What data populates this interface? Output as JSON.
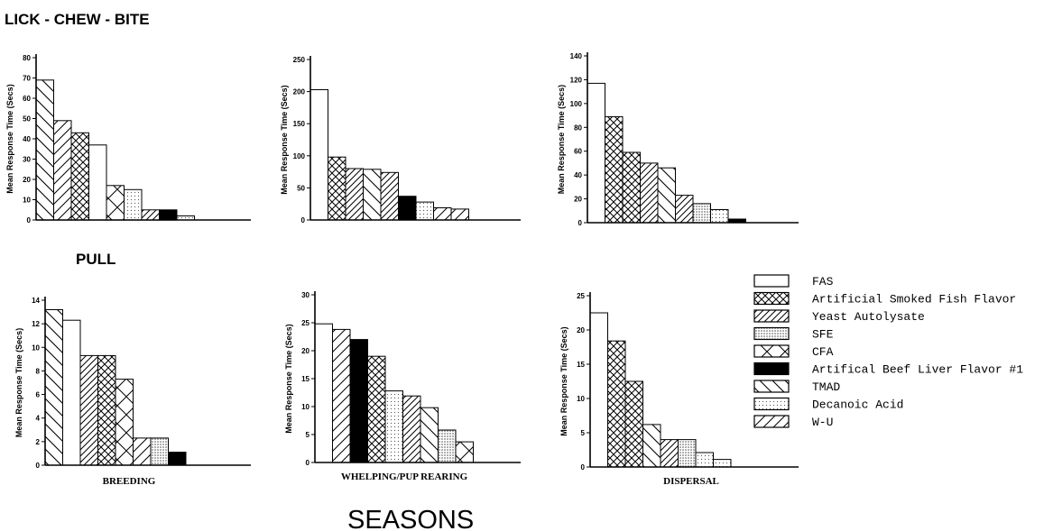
{
  "figure": {
    "section_top": "LICK - CHEW - BITE",
    "section_bottom": "PULL",
    "footer": "SEASONS"
  },
  "legend": [
    {
      "label": "FAS",
      "pattern": "white"
    },
    {
      "label": "Artificial Smoked Fish Flavor",
      "pattern": "crosshatch"
    },
    {
      "label": "Yeast Autolysate",
      "pattern": "diag-dense"
    },
    {
      "label": "SFE",
      "pattern": "dots-dense"
    },
    {
      "label": "CFA",
      "pattern": "xcross"
    },
    {
      "label": "Artifical Beef Liver Flavor #1",
      "pattern": "black"
    },
    {
      "label": "TMAD",
      "pattern": "backslash"
    },
    {
      "label": "Decanoic Acid",
      "pattern": "dots-sparse"
    },
    {
      "label": "W-U",
      "pattern": "diag-sparse"
    }
  ],
  "chart_data": [
    {
      "type": "bar",
      "panel": "top-left",
      "ylabel": "Mean Response Time (Secs)",
      "xlabel": "",
      "ylim": [
        0,
        80
      ],
      "yticks": [
        0,
        10,
        20,
        30,
        40,
        50,
        60,
        70,
        80
      ],
      "bars": [
        {
          "treatment": "TMAD",
          "value": 69
        },
        {
          "treatment": "W-U",
          "value": 49
        },
        {
          "treatment": "Artificial Smoked Fish Flavor",
          "value": 43
        },
        {
          "treatment": "FAS",
          "value": 37
        },
        {
          "treatment": "CFA",
          "value": 17
        },
        {
          "treatment": "Decanoic Acid",
          "value": 15
        },
        {
          "treatment": "Yeast Autolysate",
          "value": 5
        },
        {
          "treatment": "Artifical Beef Liver Flavor #1",
          "value": 5
        },
        {
          "treatment": "Decanoic Acid",
          "value": 2
        }
      ]
    },
    {
      "type": "bar",
      "panel": "top-middle",
      "ylabel": "Mean Response Time (Secs)",
      "xlabel": "",
      "ylim": [
        0,
        250
      ],
      "yticks": [
        0,
        50,
        100,
        150,
        200,
        250
      ],
      "bars": [
        {
          "treatment": "FAS",
          "value": 203
        },
        {
          "treatment": "Artificial Smoked Fish Flavor",
          "value": 98
        },
        {
          "treatment": "Yeast Autolysate",
          "value": 80
        },
        {
          "treatment": "TMAD",
          "value": 79
        },
        {
          "treatment": "Yeast Autolysate",
          "value": 74
        },
        {
          "treatment": "Artifical Beef Liver Flavor #1",
          "value": 37
        },
        {
          "treatment": "Decanoic Acid",
          "value": 28
        },
        {
          "treatment": "W-U",
          "value": 19
        },
        {
          "treatment": "W-U",
          "value": 17
        }
      ]
    },
    {
      "type": "bar",
      "panel": "top-right",
      "ylabel": "Mean Response Time (Secs)",
      "xlabel": "",
      "ylim": [
        0,
        140
      ],
      "yticks": [
        0,
        20,
        40,
        60,
        80,
        100,
        120,
        140
      ],
      "bars": [
        {
          "treatment": "FAS",
          "value": 117
        },
        {
          "treatment": "Artificial Smoked Fish Flavor",
          "value": 89
        },
        {
          "treatment": "Artificial Smoked Fish Flavor",
          "value": 59
        },
        {
          "treatment": "Yeast Autolysate",
          "value": 50
        },
        {
          "treatment": "TMAD",
          "value": 46
        },
        {
          "treatment": "Yeast Autolysate",
          "value": 23
        },
        {
          "treatment": "SFE",
          "value": 16
        },
        {
          "treatment": "Decanoic Acid",
          "value": 11
        },
        {
          "treatment": "Artifical Beef Liver Flavor #1",
          "value": 3
        }
      ]
    },
    {
      "type": "bar",
      "panel": "bottom-left",
      "ylabel": "Mean Response Time (Secs)",
      "xlabel": "BREEDING",
      "ylim": [
        0,
        14
      ],
      "yticks": [
        0,
        2,
        4,
        6,
        8,
        10,
        12,
        14
      ],
      "bars": [
        {
          "treatment": "TMAD",
          "value": 13.2
        },
        {
          "treatment": "FAS",
          "value": 12.3
        },
        {
          "treatment": "Yeast Autolysate",
          "value": 9.3
        },
        {
          "treatment": "Artificial Smoked Fish Flavor",
          "value": 9.3
        },
        {
          "treatment": "CFA",
          "value": 7.3
        },
        {
          "treatment": "W-U",
          "value": 2.3
        },
        {
          "treatment": "SFE",
          "value": 2.3
        },
        {
          "treatment": "Artifical Beef Liver Flavor #1",
          "value": 1.1
        }
      ]
    },
    {
      "type": "bar",
      "panel": "bottom-middle",
      "ylabel": "Mean Response Time (Secs)",
      "xlabel": "WHELPING/PUP REARING",
      "ylim": [
        0,
        30
      ],
      "yticks": [
        0,
        5,
        10,
        15,
        20,
        25,
        30
      ],
      "bars": [
        {
          "treatment": "FAS",
          "value": 24.8
        },
        {
          "treatment": "W-U",
          "value": 23.8
        },
        {
          "treatment": "Artifical Beef Liver Flavor #1",
          "value": 22
        },
        {
          "treatment": "Artificial Smoked Fish Flavor",
          "value": 19
        },
        {
          "treatment": "Decanoic Acid",
          "value": 12.8
        },
        {
          "treatment": "Yeast Autolysate",
          "value": 11.9
        },
        {
          "treatment": "TMAD",
          "value": 9.8
        },
        {
          "treatment": "SFE",
          "value": 5.8
        },
        {
          "treatment": "CFA",
          "value": 3.7
        }
      ]
    },
    {
      "type": "bar",
      "panel": "bottom-right",
      "ylabel": "Mean Response Time (Secs)",
      "xlabel": "DISPERSAL",
      "ylim": [
        0,
        25
      ],
      "yticks": [
        0,
        5,
        10,
        15,
        20,
        25
      ],
      "bars": [
        {
          "treatment": "FAS",
          "value": 22.5
        },
        {
          "treatment": "Artificial Smoked Fish Flavor",
          "value": 18.4
        },
        {
          "treatment": "Artificial Smoked Fish Flavor",
          "value": 12.5
        },
        {
          "treatment": "TMAD",
          "value": 6.2
        },
        {
          "treatment": "Yeast Autolysate",
          "value": 4
        },
        {
          "treatment": "SFE",
          "value": 4
        },
        {
          "treatment": "Decanoic Acid",
          "value": 2.1
        },
        {
          "treatment": "Decanoic Acid",
          "value": 1.1
        }
      ]
    }
  ]
}
